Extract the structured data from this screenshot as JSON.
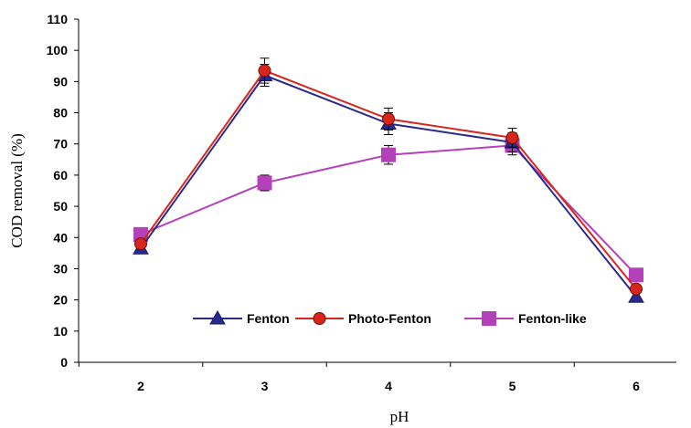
{
  "chart_data": {
    "type": "line",
    "title": "",
    "xlabel": "pH",
    "ylabel": "COD removal (%)",
    "x": [
      2,
      3,
      4,
      5,
      6
    ],
    "x_tick_labels": [
      "2",
      "3",
      "4",
      "5",
      "6"
    ],
    "ylim": [
      0,
      110
    ],
    "y_ticks": [
      0,
      10,
      20,
      30,
      40,
      50,
      60,
      70,
      80,
      90,
      100,
      110
    ],
    "y_tick_labels": [
      "0",
      "10",
      "20",
      "30",
      "40",
      "50",
      "60",
      "70",
      "80",
      "90",
      "100",
      "110"
    ],
    "grid": false,
    "legend_position": "bottom-center (inside plot)",
    "series": [
      {
        "name": "Fenton",
        "marker": "triangle",
        "color": "#2a2a8c",
        "values": [
          36.5,
          92,
          76.5,
          70.5,
          21
        ],
        "error": [
          0,
          3.5,
          3.5,
          3,
          0
        ]
      },
      {
        "name": "Photo-Fenton",
        "marker": "circle",
        "color": "#d8261c",
        "values": [
          38,
          93.5,
          78,
          72,
          23.5
        ],
        "error": [
          0,
          4,
          3.5,
          3,
          0
        ]
      },
      {
        "name": "Fenton-like",
        "marker": "square",
        "color": "#b441b9",
        "values": [
          41,
          57.5,
          66.5,
          69.5,
          28
        ],
        "error": [
          0,
          2.5,
          3,
          3,
          0
        ]
      }
    ]
  }
}
